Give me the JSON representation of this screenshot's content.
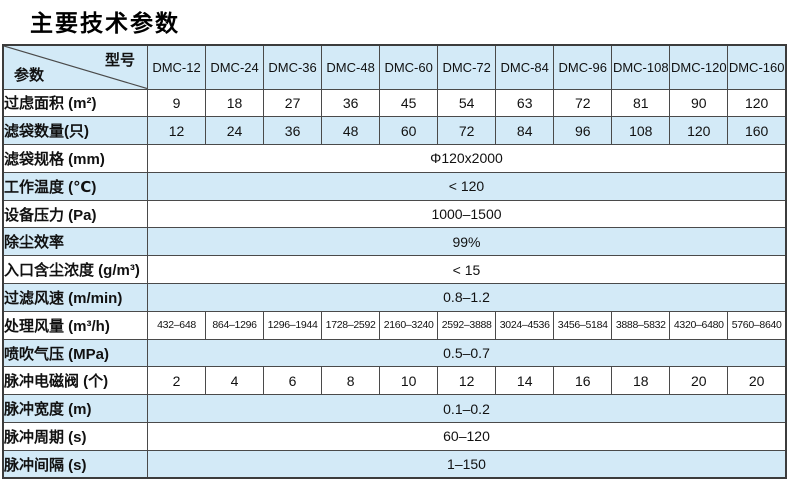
{
  "page_title": "主要技术参数",
  "table": {
    "corner": {
      "model_label": "型号",
      "param_label": "参数"
    },
    "models": [
      "DMC-12",
      "DMC-24",
      "DMC-36",
      "DMC-48",
      "DMC-60",
      "DMC-72",
      "DMC-84",
      "DMC-96",
      "DMC-108",
      "DMC-120",
      "DMC-160"
    ],
    "rows": [
      {
        "label": "过虑面积 (m²)",
        "type": "values",
        "values": [
          "9",
          "18",
          "27",
          "36",
          "45",
          "54",
          "63",
          "72",
          "81",
          "90",
          "120"
        ]
      },
      {
        "label": "滤袋数量(只)",
        "type": "values",
        "values": [
          "12",
          "24",
          "36",
          "48",
          "60",
          "72",
          "84",
          "96",
          "108",
          "120",
          "160"
        ]
      },
      {
        "label": "滤袋规格 (mm)",
        "type": "merged",
        "value": "Φ120x2000"
      },
      {
        "label": "工作温度 (℃)",
        "type": "merged",
        "value": "< 120"
      },
      {
        "label": "设备压力 (Pa)",
        "type": "merged",
        "value": "1000–1500"
      },
      {
        "label": "除尘效率",
        "type": "merged",
        "value": "99%"
      },
      {
        "label": "入口含尘浓度 (g/m³)",
        "type": "merged",
        "value": "< 15"
      },
      {
        "label": "过滤风速 (m/min)",
        "type": "merged",
        "value": "0.8–1.2"
      },
      {
        "label": "处理风量 (m³/h)",
        "type": "values",
        "small": true,
        "values": [
          "432–648",
          "864–1296",
          "1296–1944",
          "1728–2592",
          "2160–3240",
          "2592–3888",
          "3024–4536",
          "3456–5184",
          "3888–5832",
          "4320–6480",
          "5760–8640"
        ]
      },
      {
        "label": "喷吹气压 (MPa)",
        "type": "merged",
        "value": "0.5–0.7"
      },
      {
        "label": "脉冲电磁阀 (个)",
        "type": "values",
        "values": [
          "2",
          "4",
          "6",
          "8",
          "10",
          "12",
          "14",
          "16",
          "18",
          "20",
          "20"
        ]
      },
      {
        "label": "脉冲宽度 (m)",
        "type": "merged",
        "value": "0.1–0.2"
      },
      {
        "label": "脉冲周期 (s)",
        "type": "merged",
        "value": "60–120"
      },
      {
        "label": "脉冲间隔 (s)",
        "type": "merged",
        "value": "1–150"
      }
    ],
    "colors": {
      "row_alt_blue": "#d3eaf7",
      "border": "#4a4a4a",
      "outer_border": "#3c3c3c",
      "text": "#111111",
      "background": "#ffffff"
    }
  }
}
